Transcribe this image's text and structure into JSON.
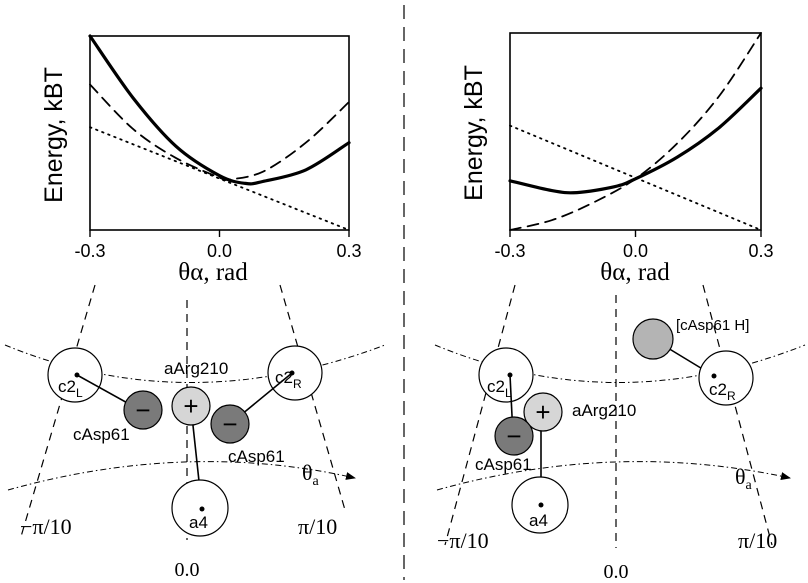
{
  "chart_data": [
    {
      "type": "line",
      "panel": "left",
      "xlabel": "θα, rad",
      "ylabel": "Energy, kBT",
      "xlim": [
        -0.3,
        0.3
      ],
      "x_ticks": [
        "-0.3",
        "0.0",
        "0.3"
      ],
      "y_ticks": [],
      "series": [
        {
          "style": "solid-thick",
          "x": [
            -0.3,
            -0.2,
            -0.1,
            0.0,
            0.06,
            0.1,
            0.2,
            0.3
          ],
          "y": [
            1.0,
            0.68,
            0.43,
            0.28,
            0.24,
            0.25,
            0.31,
            0.45
          ]
        },
        {
          "style": "dashed",
          "x": [
            -0.3,
            -0.2,
            -0.1,
            0.0,
            0.02,
            0.1,
            0.2,
            0.3
          ],
          "y": [
            0.75,
            0.52,
            0.37,
            0.27,
            0.26,
            0.3,
            0.45,
            0.66
          ]
        },
        {
          "style": "dotted",
          "x": [
            -0.3,
            0.3
          ],
          "y": [
            0.53,
            0.0
          ]
        }
      ]
    },
    {
      "type": "line",
      "panel": "right",
      "xlabel": "θα, rad",
      "ylabel": "Energy, kBT",
      "xlim": [
        -0.3,
        0.3
      ],
      "x_ticks": [
        "-0.3",
        "0.0",
        "0.3"
      ],
      "y_ticks": [],
      "series": [
        {
          "style": "solid-thick",
          "x": [
            -0.3,
            -0.2,
            -0.14,
            -0.05,
            0.0,
            0.1,
            0.2,
            0.3
          ],
          "y": [
            0.25,
            0.2,
            0.19,
            0.22,
            0.26,
            0.37,
            0.52,
            0.72
          ]
        },
        {
          "style": "dashed",
          "x": [
            -0.3,
            -0.2,
            -0.1,
            0.0,
            0.1,
            0.2,
            0.3
          ],
          "y": [
            0.0,
            0.05,
            0.14,
            0.26,
            0.44,
            0.68,
            1.0
          ]
        },
        {
          "style": "dotted",
          "x": [
            -0.3,
            0.3
          ],
          "y": [
            0.53,
            0.0
          ]
        }
      ]
    }
  ],
  "diagram": {
    "left": {
      "circles": {
        "c2L": "c2",
        "c2L_sub": "L",
        "c2R": "c2",
        "c2R_sub": "R",
        "a4": "a4"
      },
      "charges": {
        "minus": "−",
        "plus": "+"
      },
      "labels": {
        "aArg210": "aArg210",
        "cAsp61_left": "cAsp61",
        "cAsp61_right": "cAsp61",
        "theta": "θ",
        "theta_sub": "a",
        "neg": "−π/10",
        "pos": "π/10",
        "zero": "0.0"
      }
    },
    "right": {
      "circles": {
        "c2L": "c2",
        "c2L_sub": "L",
        "c2R": "c2",
        "c2R_sub": "R",
        "a4": "a4"
      },
      "charges": {
        "minus": "−",
        "plus": "+"
      },
      "labels": {
        "aArg210": "aArg210",
        "cAsp61": "cAsp61",
        "protonated": "[cAsp61 H]",
        "theta": "θ",
        "theta_sub": "a",
        "neg": "−π/10",
        "pos": "π/10",
        "zero": "0.0"
      }
    }
  },
  "colors": {
    "line": "#000000",
    "dark_sphere": "#7a7a7a",
    "light_sphere": "#d6d6d6",
    "protonated_sphere": "#b4b4b4"
  }
}
